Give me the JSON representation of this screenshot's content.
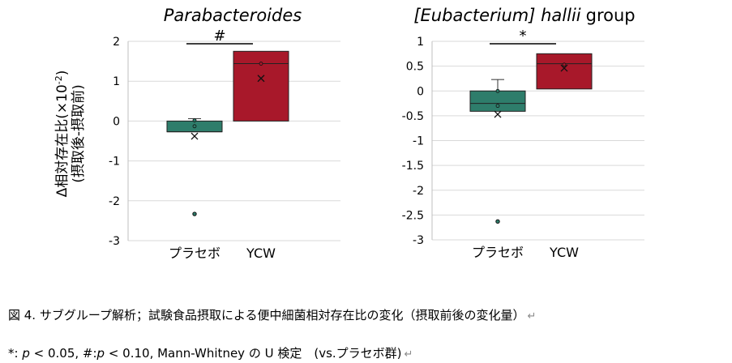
{
  "y_axis_title": "Δ相対存在比(×10",
  "y_axis_title_sup": "-2",
  "y_axis_title_close": ")",
  "y_axis_subtitle": "(摂取後-摂取前)",
  "colors": {
    "placebo": "#2e7d6b",
    "ycw": "#a8182a",
    "grid": "#d9d9d9",
    "axis": "#bfbfbf"
  },
  "chart_data": [
    {
      "type": "box",
      "title": "Parabacteroides",
      "title_italic": true,
      "title_suffix": "",
      "categories": [
        "プラセボ",
        "YCW"
      ],
      "ylim": [
        -3,
        2
      ],
      "yticks": [
        "2",
        "1",
        "0",
        "-1",
        "-2",
        "-3"
      ],
      "ytick_values": [
        2,
        1,
        0,
        -1,
        -2,
        -3
      ],
      "grid": true,
      "significance": {
        "label": "#",
        "between": [
          "プラセボ",
          "YCW"
        ]
      },
      "series": [
        {
          "name": "プラセボ",
          "color_key": "placebo",
          "whisker_low": -0.27,
          "q1": -0.27,
          "median": -0.27,
          "q3": 0.0,
          "whisker_high": 0.06,
          "mean": -0.38,
          "points": [
            0.02,
            -0.13
          ],
          "outliers": [
            -2.33
          ]
        },
        {
          "name": "YCW",
          "color_key": "ycw",
          "whisker_low": 0.0,
          "q1": 0.0,
          "median": 1.44,
          "q3": 1.75,
          "whisker_high": 1.75,
          "mean": 1.07,
          "points": [
            1.44
          ],
          "outliers": []
        }
      ]
    },
    {
      "type": "box",
      "title": "[Eubacterium] hallii",
      "title_italic": true,
      "title_suffix": "group",
      "categories": [
        "プラセボ",
        "YCW"
      ],
      "ylim": [
        -3,
        1
      ],
      "yticks": [
        "1",
        "0.5",
        "0",
        "-0.5",
        "-1",
        "-1.5",
        "-2",
        "-2.5",
        "-3"
      ],
      "ytick_values": [
        1,
        0.5,
        0,
        -0.5,
        -1,
        -1.5,
        -2,
        -2.5,
        -3
      ],
      "grid": true,
      "significance": {
        "label": "*",
        "between": [
          "プラセボ",
          "YCW"
        ]
      },
      "series": [
        {
          "name": "プラセボ",
          "color_key": "placebo",
          "whisker_low": -0.41,
          "q1": -0.41,
          "median": -0.25,
          "q3": 0.0,
          "whisker_high": 0.23,
          "mean": -0.47,
          "points": [
            0.0,
            -0.3
          ],
          "outliers": [
            -2.63
          ]
        },
        {
          "name": "YCW",
          "color_key": "ycw",
          "whisker_low": 0.04,
          "q1": 0.04,
          "median": 0.55,
          "q3": 0.75,
          "whisker_high": 0.75,
          "mean": 0.46,
          "points": [
            0.53
          ],
          "outliers": []
        }
      ]
    }
  ],
  "caption": {
    "line1": "図 4. サブグループ解析；試験食品摂取による便中細菌相対存在比の変化（摂取前後の変化量）",
    "line2_star": "*: ",
    "line2_p1": "p",
    "line2_mid1": " < 0.05, #:",
    "line2_p2": "p",
    "line2_mid2": " < 0.10, Mann-Whitney の U 検定　(vs.プラセボ群)",
    "return_mark": "↵"
  }
}
